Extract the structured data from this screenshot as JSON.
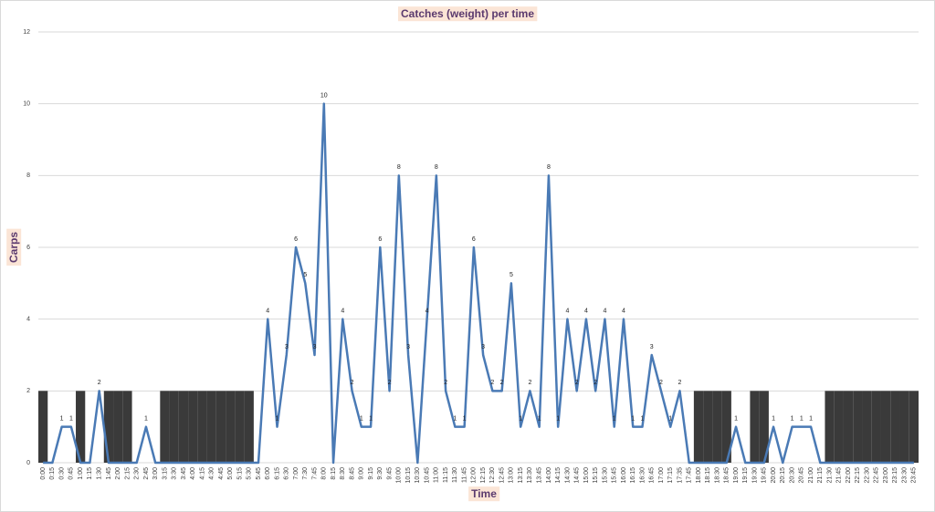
{
  "chart_data": {
    "type": "line",
    "title": "Catches (weight) per time",
    "x_label": "Time",
    "y_label": "Carps",
    "categories": [
      "0:00",
      "0:15",
      "0:30",
      "0:45",
      "1:00",
      "1:15",
      "1:30",
      "1:45",
      "2:00",
      "2:15",
      "2:30",
      "2:45",
      "3:00",
      "3:15",
      "3:30",
      "3:45",
      "4:00",
      "4:15",
      "4:30",
      "4:45",
      "5:00",
      "5:15",
      "5:30",
      "5:45",
      "6:00",
      "6:15",
      "6:30",
      "7:00",
      "7:30",
      "7:45",
      "8:00",
      "8:15",
      "8:30",
      "8:45",
      "9:00",
      "9:15",
      "9:30",
      "9:45",
      "10:00",
      "10:15",
      "10:30",
      "10:45",
      "11:00",
      "11:15",
      "11:30",
      "11:45",
      "12:00",
      "12:15",
      "12:30",
      "12:45",
      "13:00",
      "13:15",
      "13:30",
      "13:45",
      "14:00",
      "14:15",
      "14:30",
      "14:45",
      "15:00",
      "15:15",
      "15:30",
      "15:45",
      "16:00",
      "16:15",
      "16:30",
      "16:45",
      "17:00",
      "17:15",
      "17:35",
      "17:45",
      "18:00",
      "18:15",
      "18:30",
      "18:45",
      "19:00",
      "19:15",
      "19:30",
      "19:45",
      "20:00",
      "20:15",
      "20:30",
      "20:45",
      "21:00",
      "21:15",
      "21:30",
      "21:45",
      "22:00",
      "22:15",
      "22:30",
      "22:45",
      "23:00",
      "23:15",
      "23:30",
      "23:45"
    ],
    "series": [
      {
        "type": "bar",
        "color": "#3a3a3a",
        "values": [
          2,
          null,
          null,
          null,
          2,
          null,
          null,
          2,
          2,
          2,
          null,
          null,
          null,
          2,
          2,
          2,
          2,
          2,
          2,
          2,
          2,
          2,
          2,
          null,
          null,
          null,
          null,
          null,
          null,
          null,
          null,
          null,
          null,
          null,
          null,
          null,
          null,
          null,
          null,
          null,
          null,
          null,
          null,
          null,
          null,
          null,
          null,
          null,
          null,
          null,
          null,
          null,
          null,
          null,
          null,
          null,
          null,
          null,
          null,
          null,
          null,
          null,
          null,
          null,
          null,
          null,
          null,
          null,
          null,
          null,
          2,
          2,
          2,
          2,
          null,
          null,
          2,
          2,
          null,
          null,
          null,
          null,
          null,
          null,
          2,
          2,
          2,
          2,
          2,
          2,
          2,
          2,
          2,
          2
        ]
      },
      {
        "type": "line",
        "color": "#4a7ab5",
        "values": [
          0,
          0,
          1,
          1,
          0,
          0,
          2,
          0,
          0,
          0,
          0,
          1,
          0,
          0,
          0,
          0,
          0,
          0,
          0,
          0,
          0,
          0,
          0,
          0,
          4,
          1,
          3,
          6,
          5,
          3,
          10,
          0,
          4,
          2,
          1,
          1,
          6,
          2,
          8,
          3,
          0,
          4,
          8,
          2,
          1,
          1,
          6,
          3,
          2,
          2,
          5,
          1,
          2,
          1,
          8,
          1,
          4,
          2,
          4,
          2,
          4,
          1,
          4,
          1,
          1,
          3,
          2,
          1,
          2,
          0,
          0,
          0,
          0,
          0,
          1,
          0,
          0,
          0,
          1,
          0,
          1,
          1,
          1,
          0,
          0,
          0,
          0,
          0,
          0,
          0,
          0,
          0,
          0,
          0
        ]
      }
    ],
    "ylim": [
      0,
      12
    ],
    "yticks": [
      0,
      2,
      4,
      6,
      8,
      10,
      12
    ],
    "grid": true
  }
}
